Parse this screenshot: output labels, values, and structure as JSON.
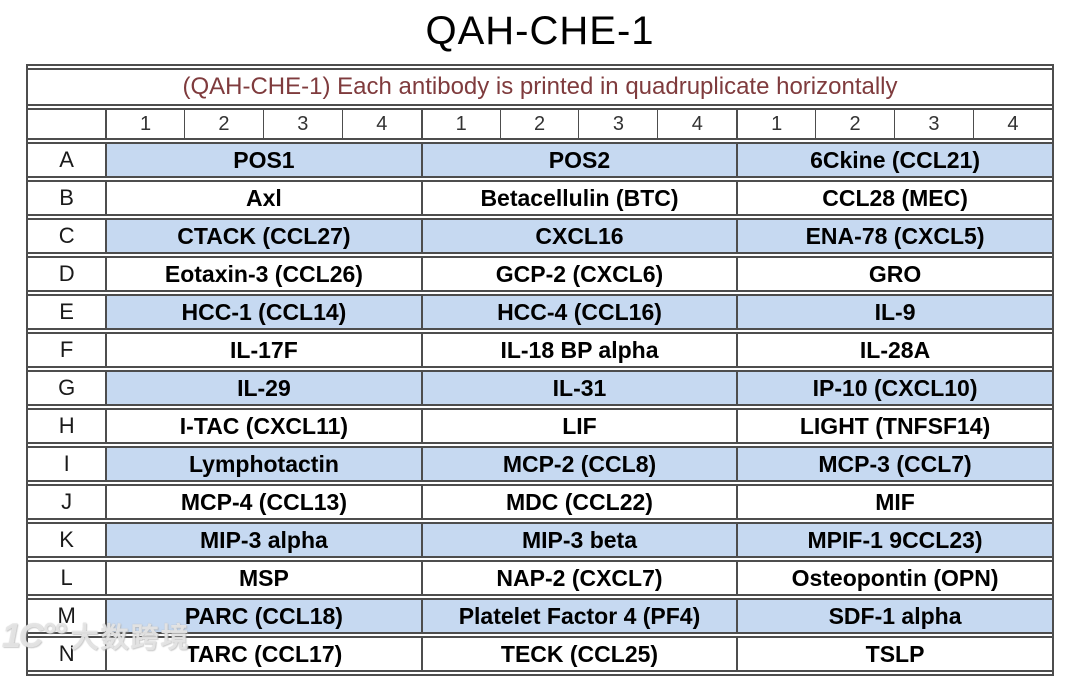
{
  "title": "QAH-CHE-1",
  "table": {
    "header": "(QAH-CHE-1) Each antibody is printed in quadruplicate horizontally",
    "column_numbers": [
      "1",
      "2",
      "3",
      "4",
      "1",
      "2",
      "3",
      "4",
      "1",
      "2",
      "3",
      "4"
    ],
    "rows": [
      {
        "label": "A",
        "shaded": true,
        "cells": [
          "POS1",
          "POS2",
          "6Ckine (CCL21)"
        ]
      },
      {
        "label": "B",
        "shaded": false,
        "cells": [
          "Axl",
          "Betacellulin (BTC)",
          "CCL28 (MEC)"
        ]
      },
      {
        "label": "C",
        "shaded": true,
        "cells": [
          "CTACK (CCL27)",
          "CXCL16",
          "ENA-78 (CXCL5)"
        ]
      },
      {
        "label": "D",
        "shaded": false,
        "cells": [
          "Eotaxin-3 (CCL26)",
          "GCP-2 (CXCL6)",
          "GRO"
        ]
      },
      {
        "label": "E",
        "shaded": true,
        "cells": [
          "HCC-1 (CCL14)",
          "HCC-4 (CCL16)",
          "IL-9"
        ]
      },
      {
        "label": "F",
        "shaded": false,
        "cells": [
          "IL-17F",
          "IL-18 BP alpha",
          "IL-28A"
        ]
      },
      {
        "label": "G",
        "shaded": true,
        "cells": [
          "IL-29",
          "IL-31",
          "IP-10 (CXCL10)"
        ]
      },
      {
        "label": "H",
        "shaded": false,
        "cells": [
          "I-TAC (CXCL11)",
          "LIF",
          "LIGHT (TNFSF14)"
        ]
      },
      {
        "label": "I",
        "shaded": true,
        "cells": [
          "Lymphotactin",
          "MCP-2 (CCL8)",
          "MCP-3 (CCL7)"
        ]
      },
      {
        "label": "J",
        "shaded": false,
        "cells": [
          "MCP-4 (CCL13)",
          "MDC (CCL22)",
          "MIF"
        ]
      },
      {
        "label": "K",
        "shaded": true,
        "cells": [
          "MIP-3 alpha",
          "MIP-3 beta",
          "MPIF-1 9CCL23)"
        ]
      },
      {
        "label": "L",
        "shaded": false,
        "cells": [
          "MSP",
          "NAP-2 (CXCL7)",
          "Osteopontin (OPN)"
        ]
      },
      {
        "label": "M",
        "shaded": true,
        "cells": [
          "PARC (CCL18)",
          "Platelet Factor 4 (PF4)",
          "SDF-1 alpha"
        ]
      },
      {
        "label": "N",
        "shaded": false,
        "cells": [
          "TARC (CCL17)",
          "TECK (CCL25)",
          "TSLP"
        ]
      }
    ]
  },
  "colors": {
    "shaded_row_fill": "#c6d9f1",
    "header_text": "#7f3b3d",
    "border": "#4d4d4d"
  },
  "watermark": {
    "logo": "1C°°",
    "text": "大数跨境"
  }
}
